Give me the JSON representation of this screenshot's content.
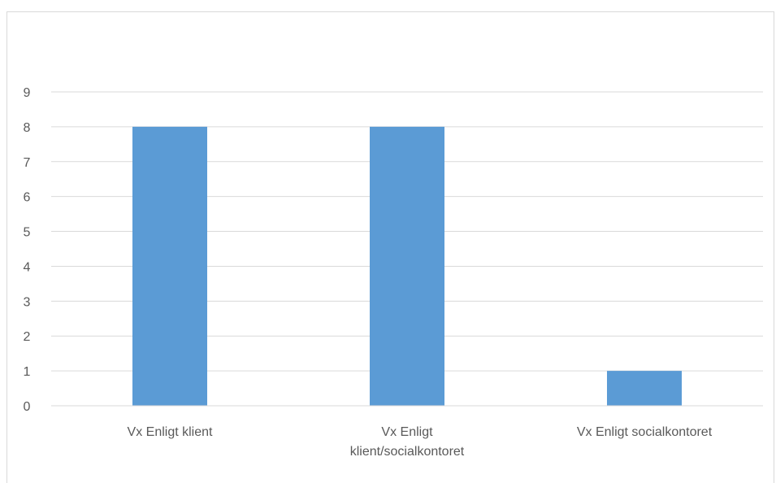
{
  "chart_data": {
    "type": "bar",
    "categories": [
      "Vx Enligt klient",
      "Vx Enligt klient/socialkontoret",
      "Vx Enligt socialkontoret"
    ],
    "category_label_lines": [
      [
        "Vx Enligt klient"
      ],
      [
        "Vx Enligt",
        "klient/socialkontoret"
      ],
      [
        "Vx Enligt socialkontoret"
      ]
    ],
    "series": [
      {
        "values": [
          8,
          8,
          1
        ],
        "color": "#5b9bd5"
      }
    ],
    "title": "",
    "xlabel": "",
    "ylabel": "",
    "ylim": [
      0,
      9
    ],
    "yticks": [
      0,
      1,
      2,
      3,
      4,
      5,
      6,
      7,
      8,
      9
    ],
    "grid": true,
    "gridColor": "#d9d9d9",
    "legend": "none"
  }
}
